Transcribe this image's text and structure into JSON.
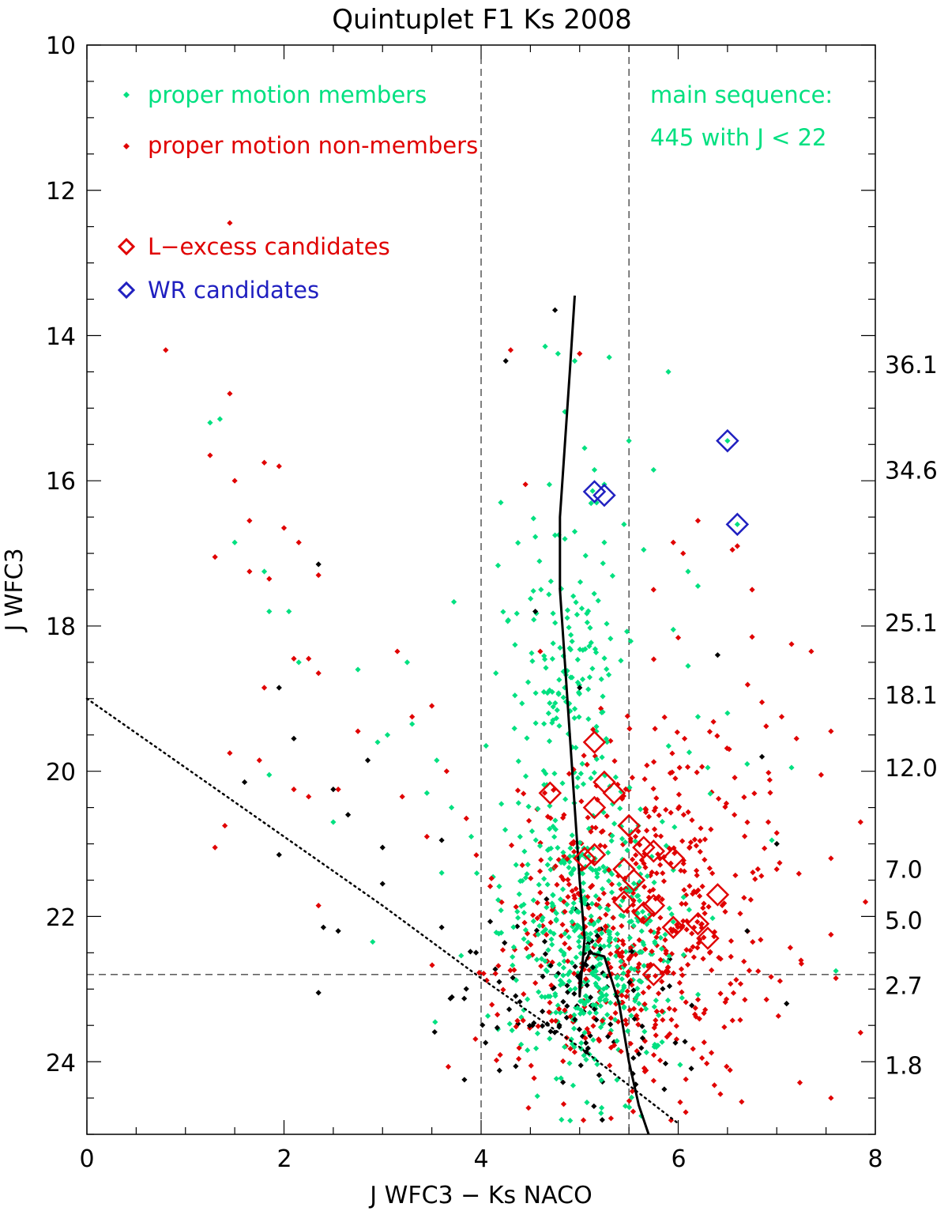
{
  "chart_data": {
    "type": "scatter",
    "title": "Quintuplet F1 Ks 2008",
    "xlabel": "J WFC3 − Ks NACO",
    "ylabel": "J WFC3",
    "xlim": [
      0,
      8
    ],
    "ylim": [
      25,
      10
    ],
    "x_ticks": [
      "0",
      "2",
      "4",
      "6",
      "8"
    ],
    "y_ticks": [
      "10",
      "12",
      "14",
      "16",
      "18",
      "20",
      "22",
      "24"
    ],
    "right_mass_labels": [
      {
        "y": 14.4,
        "label": "36.1"
      },
      {
        "y": 15.85,
        "label": "34.6"
      },
      {
        "y": 17.95,
        "label": "25.1"
      },
      {
        "y": 18.95,
        "label": "18.1"
      },
      {
        "y": 19.95,
        "label": "12.0"
      },
      {
        "y": 21.35,
        "label": "7.0"
      },
      {
        "y": 22.05,
        "label": "5.0"
      },
      {
        "y": 22.95,
        "label": "2.7"
      },
      {
        "y": 24.05,
        "label": "1.8"
      }
    ],
    "reference_lines": {
      "vertical_x": [
        4.0,
        5.5
      ],
      "horizontal_y": [
        22.8
      ]
    },
    "legend": {
      "members": "proper motion members",
      "nonmembers": "proper motion non-members",
      "lexcess": "L−excess candidates",
      "wr": "WR candidates"
    },
    "annotation": {
      "line1": "main sequence:",
      "line2": "445 with J < 22"
    },
    "colors": {
      "members": "#00e080",
      "nonmembers": "#e00000",
      "unclassified": "#000000",
      "lexcess": "#e00000",
      "wr": "#2020c0"
    },
    "series": [
      {
        "name": "proper motion members",
        "color": "members",
        "points": [
          [
            1.25,
            15.2
          ],
          [
            1.35,
            15.15
          ],
          [
            1.5,
            16.85
          ],
          [
            1.8,
            17.25
          ],
          [
            1.85,
            17.8
          ],
          [
            2.05,
            17.8
          ],
          [
            2.15,
            18.5
          ],
          [
            1.85,
            20.05
          ],
          [
            2.75,
            18.6
          ],
          [
            2.5,
            20.7
          ],
          [
            2.95,
            19.6
          ],
          [
            3.05,
            19.5
          ],
          [
            3.3,
            19.35
          ],
          [
            3.25,
            18.5
          ],
          [
            3.45,
            20.3
          ],
          [
            3.55,
            19.85
          ],
          [
            2.9,
            22.35
          ],
          [
            3.7,
            20.5
          ],
          [
            3.9,
            20.9
          ],
          [
            3.6,
            21.4
          ],
          [
            4.05,
            19.65
          ],
          [
            4.15,
            18.65
          ],
          [
            4.2,
            16.3
          ],
          [
            4.65,
            14.15
          ],
          [
            4.78,
            14.25
          ],
          [
            4.85,
            15.05
          ],
          [
            4.95,
            14.35
          ],
          [
            5.05,
            15.55
          ],
          [
            5.15,
            15.85
          ],
          [
            5.25,
            16.05
          ],
          [
            5.3,
            14.3
          ],
          [
            5.5,
            15.45
          ],
          [
            5.75,
            15.85
          ],
          [
            5.9,
            14.5
          ],
          [
            4.75,
            16.75
          ],
          [
            4.85,
            16.8
          ],
          [
            4.95,
            16.7
          ],
          [
            5.25,
            16.85
          ],
          [
            5.45,
            16.6
          ],
          [
            5.65,
            16.95
          ],
          [
            6.1,
            17.25
          ],
          [
            6.2,
            17.45
          ],
          [
            5.95,
            18.05
          ],
          [
            6.1,
            18.55
          ],
          [
            6.2,
            19.25
          ],
          [
            6.5,
            19.2
          ],
          [
            6.3,
            19.95
          ],
          [
            6.7,
            19.9
          ],
          [
            6.95,
            20.95
          ],
          [
            7.15,
            19.95
          ],
          [
            7.6,
            22.75
          ],
          [
            6.6,
            16.6
          ],
          [
            6.5,
            15.45
          ]
        ]
      },
      {
        "name": "proper motion non-members",
        "color": "nonmembers",
        "points": [
          [
            0.8,
            14.2
          ],
          [
            1.45,
            12.45
          ],
          [
            1.45,
            14.8
          ],
          [
            1.25,
            15.65
          ],
          [
            1.5,
            16.0
          ],
          [
            1.8,
            15.75
          ],
          [
            1.95,
            15.8
          ],
          [
            1.65,
            16.55
          ],
          [
            1.3,
            17.05
          ],
          [
            1.65,
            17.25
          ],
          [
            1.85,
            17.35
          ],
          [
            2.0,
            16.65
          ],
          [
            2.15,
            16.85
          ],
          [
            2.35,
            17.3
          ],
          [
            2.1,
            18.45
          ],
          [
            2.25,
            18.45
          ],
          [
            2.35,
            18.65
          ],
          [
            1.8,
            18.85
          ],
          [
            1.75,
            19.85
          ],
          [
            1.45,
            19.75
          ],
          [
            2.1,
            20.25
          ],
          [
            2.25,
            20.35
          ],
          [
            1.3,
            21.05
          ],
          [
            1.4,
            20.75
          ],
          [
            2.35,
            21.85
          ],
          [
            2.55,
            20.25
          ],
          [
            2.75,
            19.45
          ],
          [
            3.15,
            18.35
          ],
          [
            3.3,
            19.25
          ],
          [
            3.5,
            19.1
          ],
          [
            3.2,
            20.35
          ],
          [
            3.45,
            20.9
          ],
          [
            3.65,
            20.0
          ],
          [
            3.85,
            20.65
          ],
          [
            4.3,
            14.2
          ],
          [
            4.45,
            16.05
          ],
          [
            4.6,
            18.35
          ],
          [
            5.95,
            16.85
          ],
          [
            6.05,
            17.0
          ],
          [
            5.75,
            17.5
          ],
          [
            6.2,
            16.55
          ],
          [
            6.55,
            16.95
          ],
          [
            6.6,
            16.9
          ],
          [
            6.75,
            17.5
          ],
          [
            6.75,
            18.15
          ],
          [
            7.15,
            18.25
          ],
          [
            7.35,
            18.35
          ],
          [
            7.55,
            19.45
          ],
          [
            6.85,
            19.05
          ],
          [
            7.05,
            19.25
          ],
          [
            7.2,
            19.55
          ],
          [
            7.45,
            20.05
          ],
          [
            7.0,
            20.85
          ],
          [
            7.55,
            21.2
          ],
          [
            7.55,
            22.25
          ],
          [
            7.25,
            22.65
          ],
          [
            7.6,
            22.85
          ],
          [
            7.85,
            20.7
          ],
          [
            7.9,
            21.8
          ],
          [
            7.85,
            23.6
          ],
          [
            7.55,
            24.5
          ],
          [
            5.0,
            14.25
          ]
        ]
      },
      {
        "name": "unclassified",
        "color": "unclassified",
        "points": [
          [
            2.35,
            17.15
          ],
          [
            1.95,
            18.85
          ],
          [
            2.1,
            19.55
          ],
          [
            1.6,
            20.15
          ],
          [
            2.5,
            20.25
          ],
          [
            2.65,
            20.6
          ],
          [
            1.95,
            21.15
          ],
          [
            2.4,
            22.15
          ],
          [
            2.55,
            22.2
          ],
          [
            2.35,
            23.05
          ],
          [
            3.0,
            21.05
          ],
          [
            3.0,
            21.55
          ],
          [
            2.85,
            19.85
          ],
          [
            3.6,
            20.95
          ],
          [
            3.6,
            22.15
          ],
          [
            4.25,
            14.35
          ],
          [
            4.75,
            13.65
          ],
          [
            4.55,
            17.8
          ],
          [
            5.0,
            18.85
          ],
          [
            6.4,
            18.4
          ],
          [
            6.85,
            19.8
          ],
          [
            7.0,
            21.0
          ],
          [
            7.1,
            23.2
          ],
          [
            6.7,
            22.2
          ]
        ]
      }
    ],
    "dense_clouds": [
      {
        "series": "members",
        "mean_x": 5.1,
        "sd_x": 0.45,
        "mean_y": 22.3,
        "sd_y": 1.0,
        "count": 480
      },
      {
        "series": "members",
        "mean_x": 4.85,
        "sd_x": 0.28,
        "mean_y": 18.6,
        "sd_y": 1.1,
        "count": 150
      },
      {
        "series": "nonmembers",
        "mean_x": 5.5,
        "sd_x": 0.7,
        "mean_y": 22.3,
        "sd_y": 1.05,
        "count": 480
      },
      {
        "series": "nonmembers",
        "mean_x": 5.9,
        "sd_x": 0.6,
        "mean_y": 20.5,
        "sd_y": 0.9,
        "count": 90
      },
      {
        "series": "unclassified",
        "mean_x": 5.0,
        "sd_x": 0.55,
        "mean_y": 23.3,
        "sd_y": 0.6,
        "count": 110
      }
    ],
    "lexcess_candidates": [
      [
        5.15,
        19.6
      ],
      [
        4.7,
        20.3
      ],
      [
        5.25,
        20.15
      ],
      [
        5.35,
        20.3
      ],
      [
        5.15,
        20.5
      ],
      [
        5.5,
        20.75
      ],
      [
        5.15,
        21.15
      ],
      [
        5.05,
        21.2
      ],
      [
        5.65,
        21.05
      ],
      [
        5.75,
        21.1
      ],
      [
        5.95,
        21.2
      ],
      [
        5.45,
        21.35
      ],
      [
        5.55,
        21.5
      ],
      [
        5.45,
        21.8
      ],
      [
        5.65,
        21.95
      ],
      [
        5.75,
        21.85
      ],
      [
        5.95,
        22.15
      ],
      [
        6.2,
        22.1
      ],
      [
        6.3,
        22.3
      ],
      [
        6.4,
        21.7
      ],
      [
        5.75,
        22.8
      ]
    ],
    "wr_candidates": [
      [
        5.15,
        16.15
      ],
      [
        5.25,
        16.2
      ],
      [
        6.5,
        15.45
      ],
      [
        6.6,
        16.6
      ]
    ],
    "isochrone": [
      [
        4.95,
        13.45
      ],
      [
        4.9,
        14.5
      ],
      [
        4.85,
        15.5
      ],
      [
        4.8,
        16.5
      ],
      [
        4.8,
        17.5
      ],
      [
        4.85,
        18.5
      ],
      [
        4.9,
        19.5
      ],
      [
        4.95,
        20.5
      ],
      [
        5.0,
        21.5
      ],
      [
        5.05,
        22.3
      ],
      [
        5.0,
        23.1
      ],
      [
        5.0,
        22.8
      ],
      [
        5.1,
        22.5
      ],
      [
        5.25,
        22.55
      ],
      [
        5.4,
        23.2
      ],
      [
        5.5,
        24.0
      ],
      [
        5.6,
        24.6
      ],
      [
        5.7,
        25.0
      ]
    ],
    "extinction_limit": [
      [
        0,
        19.0
      ],
      [
        1,
        19.95
      ],
      [
        2,
        20.9
      ],
      [
        3,
        21.85
      ],
      [
        4,
        22.85
      ],
      [
        5,
        23.8
      ],
      [
        6,
        24.85
      ]
    ]
  }
}
